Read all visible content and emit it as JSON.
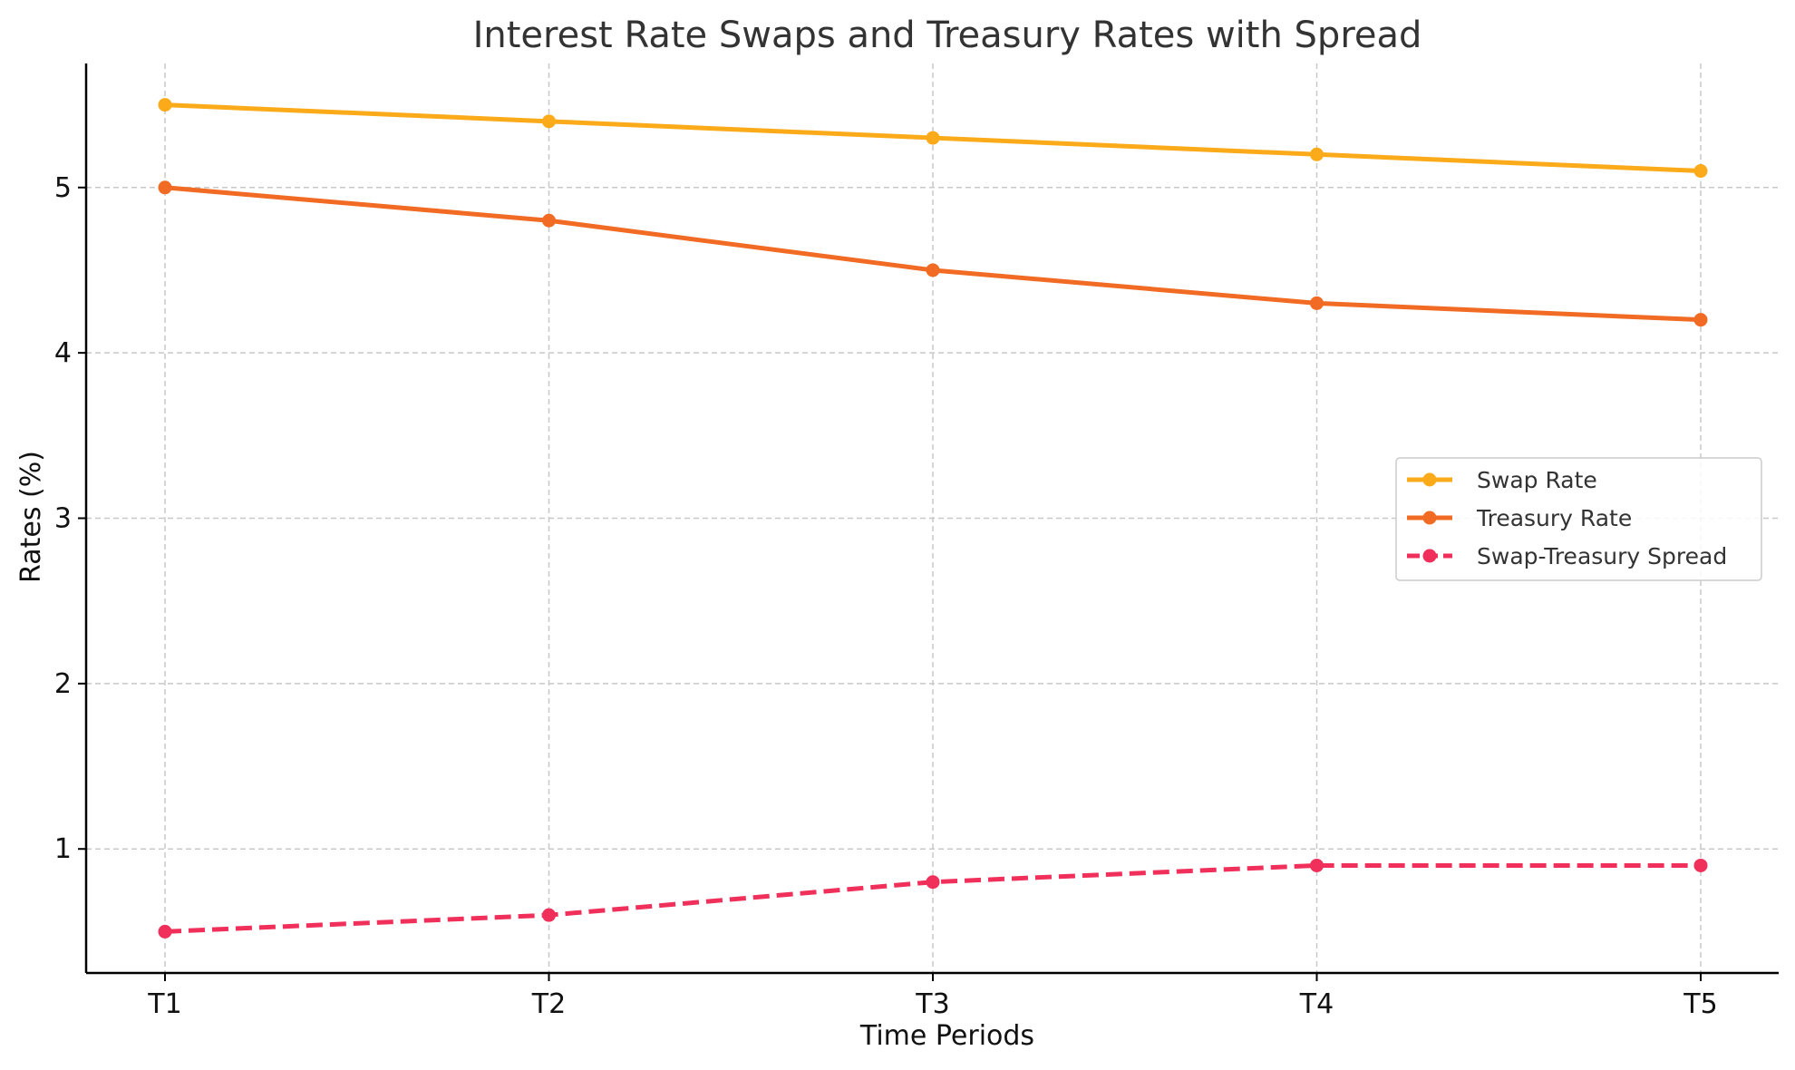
{
  "chart_data": {
    "type": "line",
    "title": "Interest Rate Swaps and Treasury Rates with Spread",
    "xlabel": "Time Periods",
    "ylabel": "Rates (%)",
    "categories": [
      "T1",
      "T2",
      "T3",
      "T4",
      "T5"
    ],
    "ylim": [
      0.25,
      5.75
    ],
    "yticks": [
      1,
      2,
      3,
      4,
      5
    ],
    "grid": true,
    "legend_position": "center-right",
    "series": [
      {
        "name": "Swap Rate",
        "values": [
          5.5,
          5.4,
          5.3,
          5.2,
          5.1
        ],
        "color": "#FBAA19",
        "style": "solid"
      },
      {
        "name": "Treasury Rate",
        "values": [
          5.0,
          4.8,
          4.5,
          4.3,
          4.2
        ],
        "color": "#F26B24",
        "style": "solid"
      },
      {
        "name": "Swap-Treasury Spread",
        "values": [
          0.5,
          0.6,
          0.8,
          0.9,
          0.9
        ],
        "color": "#F0305A",
        "style": "dashed"
      }
    ]
  }
}
